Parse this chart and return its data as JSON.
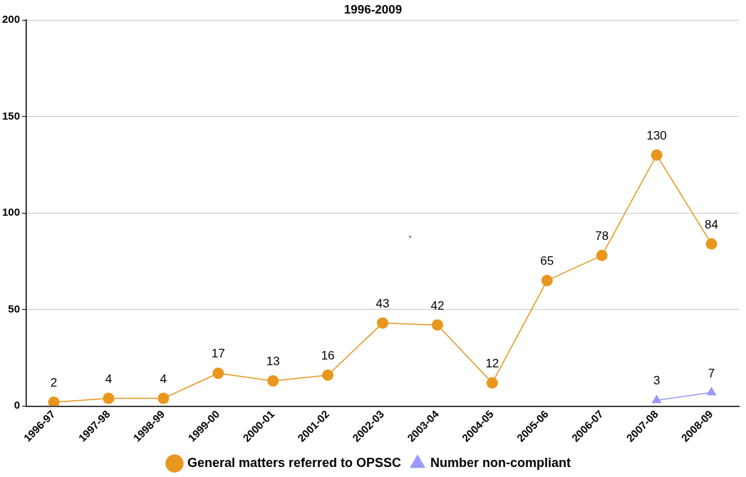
{
  "chart_data": {
    "type": "line",
    "title": "1996-2009",
    "categories": [
      "1996-97",
      "1997-98",
      "1998-99",
      "1999-00",
      "2000-01",
      "2001-02",
      "2002-03",
      "2003-04",
      "2004-05",
      "2005-06",
      "2006-07",
      "2007-08",
      "2008-09"
    ],
    "series": [
      {
        "name": "General matters referred to OPSSC",
        "color": "#e8961e",
        "marker": "circle",
        "values": [
          2,
          4,
          4,
          17,
          13,
          16,
          43,
          42,
          12,
          65,
          78,
          130,
          84
        ]
      },
      {
        "name": "Number non-compliant",
        "color": "#9999ff",
        "marker": "triangle",
        "values": [
          null,
          null,
          null,
          null,
          null,
          null,
          null,
          null,
          null,
          null,
          null,
          3,
          7
        ]
      }
    ],
    "ylim": [
      0,
      200
    ],
    "yticks": [
      0,
      50,
      100,
      150,
      200
    ],
    "grid": "y",
    "legend": "bottom",
    "data_labels": true,
    "line_style": "solid",
    "annotations": [
      "`"
    ]
  }
}
